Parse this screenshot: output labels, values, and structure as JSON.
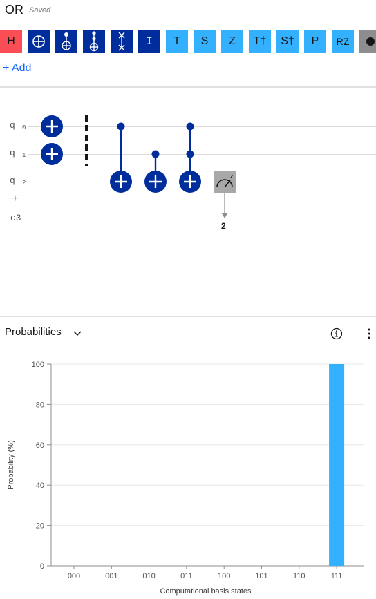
{
  "header": {
    "title": "OR",
    "status": "Saved"
  },
  "palette": {
    "gates": [
      {
        "label": "H",
        "icon": "",
        "color": "#fa4d56"
      },
      {
        "label": "",
        "icon": "cnot-target-icon",
        "color": "#002d9c"
      },
      {
        "label": "",
        "icon": "cnot-icon",
        "color": "#002d9c"
      },
      {
        "label": "",
        "icon": "toffoli-icon",
        "color": "#002d9c"
      },
      {
        "label": "",
        "icon": "swap-icon",
        "color": "#002d9c"
      },
      {
        "label": "I",
        "icon": "",
        "color": "#002d9c"
      },
      {
        "label": "T",
        "icon": "",
        "color": "#33b1ff"
      },
      {
        "label": "S",
        "icon": "",
        "color": "#33b1ff"
      },
      {
        "label": "Z",
        "icon": "",
        "color": "#33b1ff"
      },
      {
        "label": "T†",
        "icon": "",
        "color": "#33b1ff"
      },
      {
        "label": "S†",
        "icon": "",
        "color": "#33b1ff"
      },
      {
        "label": "P",
        "icon": "",
        "color": "#33b1ff"
      },
      {
        "label": "RZ",
        "icon": "",
        "color": "#33b1ff"
      },
      {
        "label": "",
        "icon": "reset-dot-icon",
        "color": "#8d8d8d"
      }
    ],
    "add_label": "+ Add"
  },
  "circuit": {
    "qubits": [
      {
        "name": "q",
        "index": "0"
      },
      {
        "name": "q",
        "index": "1"
      },
      {
        "name": "q",
        "index": "2"
      }
    ],
    "add_qubit": "+",
    "classical": "c3",
    "measure_target": "2"
  },
  "probabilities": {
    "title": "Probabilities",
    "info_icon": "info-icon",
    "menu_icon": "overflow-menu-icon"
  },
  "chart_data": {
    "type": "bar",
    "categories": [
      "000",
      "001",
      "010",
      "011",
      "100",
      "101",
      "110",
      "111"
    ],
    "values": [
      0,
      0,
      0,
      0,
      0,
      0,
      0,
      100
    ],
    "xlabel": "Computational basis states",
    "ylabel": "Probability (%)",
    "ylim": [
      0,
      100
    ],
    "yticks": [
      0,
      20,
      40,
      60,
      80,
      100
    ],
    "bar_color": "#33b1ff",
    "grid": true
  }
}
